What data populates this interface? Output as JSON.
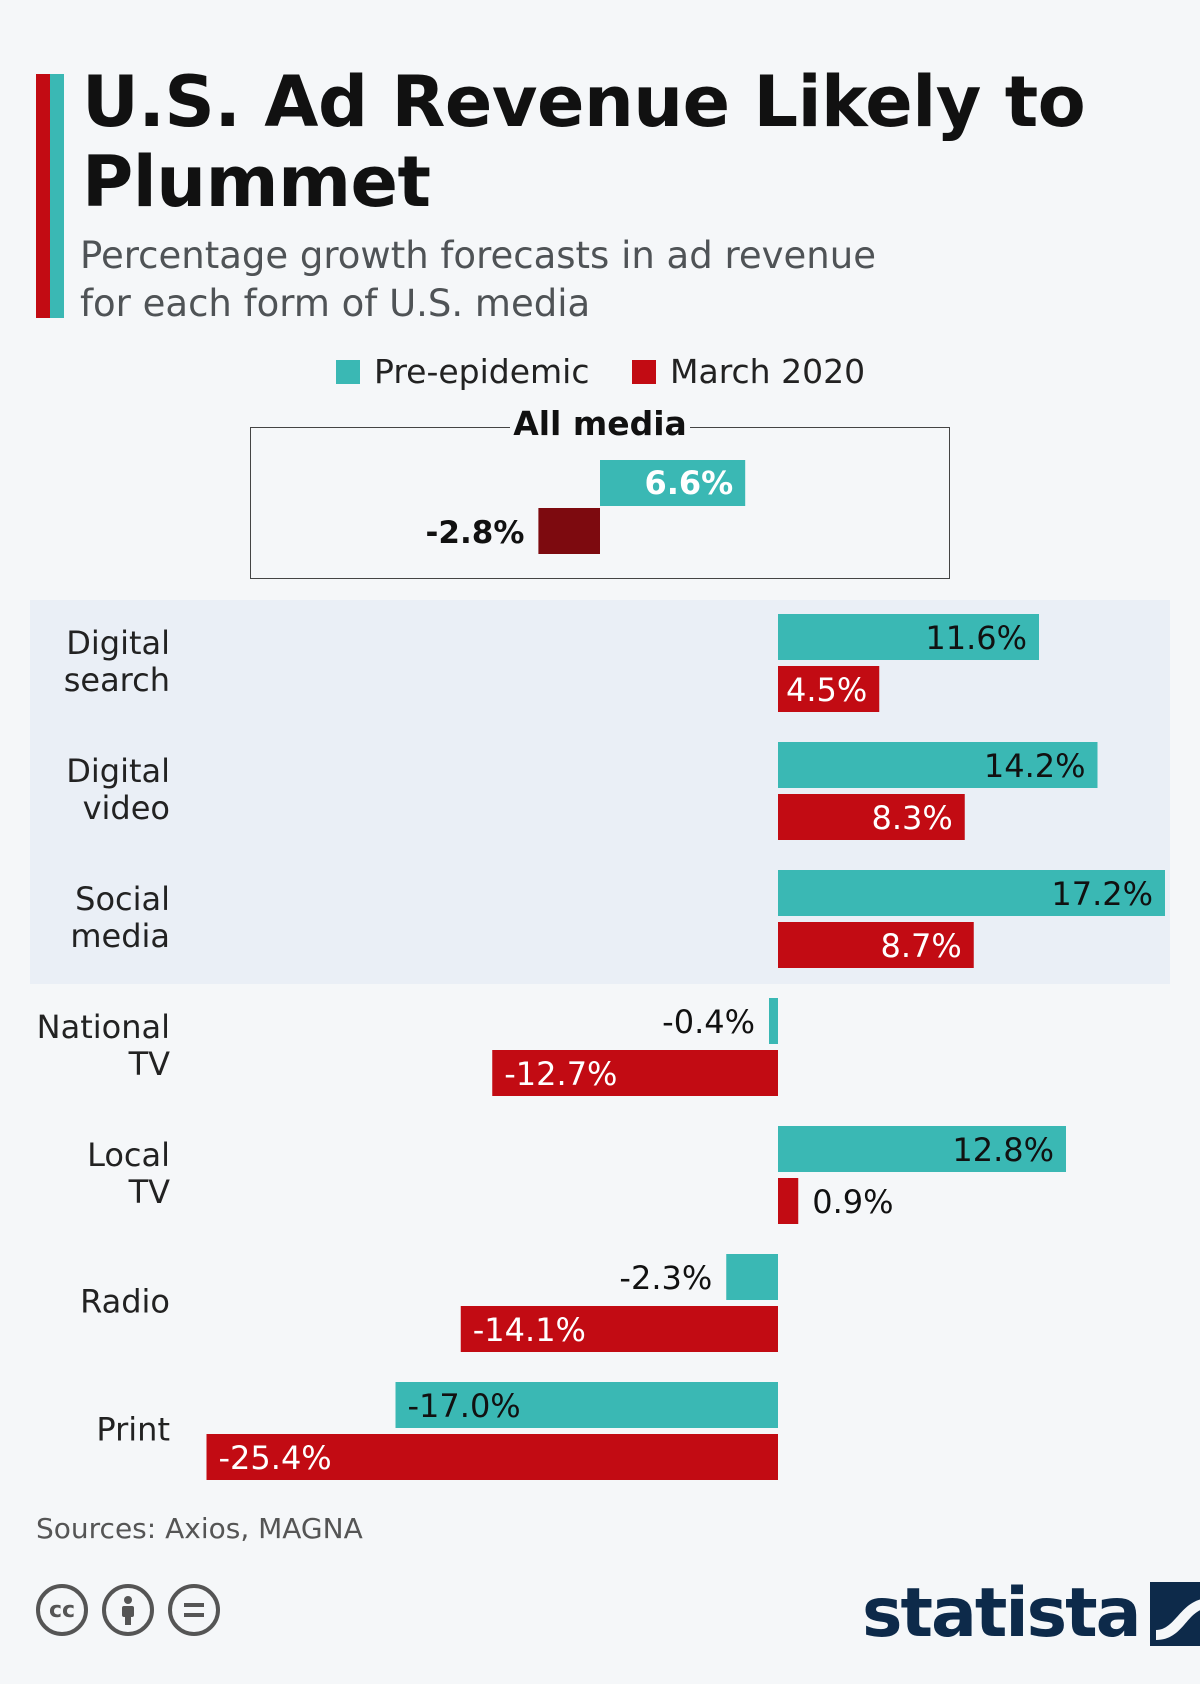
{
  "header": {
    "title": "U.S. Ad Revenue Likely to Plummet",
    "subtitle": "Percentage growth forecasts in ad revenue for each form of U.S. media",
    "accent_colors": [
      "#c20b13",
      "#3ab8b4"
    ]
  },
  "legend": {
    "items": [
      {
        "label": "Pre-epidemic",
        "color": "#3ab8b4"
      },
      {
        "label": "March 2020",
        "color": "#c20b13"
      }
    ]
  },
  "footer": {
    "source": "Sources: Axios, MAGNA",
    "license_icons": [
      "cc-icon",
      "attribution-icon",
      "no-derivatives-icon"
    ],
    "brand": "statista"
  },
  "chart_data": [
    {
      "type": "bar",
      "orientation": "horizontal",
      "title": "All media",
      "categories": [
        "All media"
      ],
      "series": [
        {
          "name": "Pre-epidemic",
          "color": "#3ab8b4",
          "values": [
            6.6
          ]
        },
        {
          "name": "March 2020",
          "color": "#7d0a0f",
          "values": [
            -2.8
          ]
        }
      ],
      "labels": [
        [
          "6.6%"
        ],
        [
          "-2.8%"
        ]
      ]
    },
    {
      "type": "bar",
      "orientation": "horizontal",
      "categories": [
        "Digital search",
        "Digital video",
        "Social media",
        "National TV",
        "Local TV",
        "Radio",
        "Print"
      ],
      "category_lines": [
        [
          "Digital",
          "search"
        ],
        [
          "Digital",
          "video"
        ],
        [
          "Social",
          "media"
        ],
        [
          "National",
          "TV"
        ],
        [
          "Local",
          "TV"
        ],
        [
          "Radio"
        ],
        [
          "Print"
        ]
      ],
      "highlighted_categories": [
        "Digital search",
        "Digital video",
        "Social media"
      ],
      "series": [
        {
          "name": "Pre-epidemic",
          "color": "#3ab8b4",
          "values": [
            11.6,
            14.2,
            17.2,
            -0.4,
            12.8,
            -2.3,
            -17.0
          ]
        },
        {
          "name": "March 2020",
          "color": "#c20b13",
          "values": [
            4.5,
            8.3,
            8.7,
            -12.7,
            0.9,
            -14.1,
            -25.4
          ]
        }
      ],
      "labels": [
        [
          "11.6%",
          "14.2%",
          "17.2%",
          "-0.4%",
          "12.8%",
          "-2.3%",
          "-17.0%"
        ],
        [
          "4.5%",
          "8.3%",
          "8.7%",
          "-12.7%",
          "0.9%",
          "-14.1%",
          "-25.4%"
        ]
      ],
      "grid": false
    }
  ]
}
